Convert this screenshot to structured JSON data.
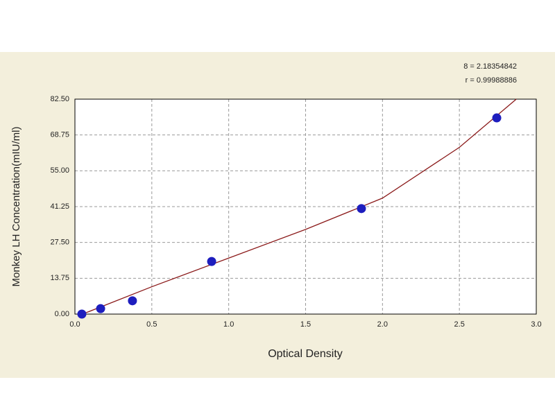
{
  "chart_data": {
    "type": "scatter",
    "x_label": "Optical Density",
    "y_label": "Monkey LH Concentration(mIU/ml)",
    "annotations": [
      "8 = 2.18354842",
      "r = 0.99988886"
    ],
    "xlim": [
      0,
      3.0
    ],
    "xticks": [
      {
        "value": 0,
        "label": "0.0"
      },
      0.5,
      {
        "value": 1,
        "label": "1.0"
      },
      1.5,
      {
        "value": 2,
        "label": "2.0"
      },
      2.5,
      {
        "value": 3,
        "label": "3.0"
      }
    ],
    "ylim": [
      0,
      82.5
    ],
    "yticks": [
      {
        "value": 0,
        "label": "0.00"
      },
      13.75,
      {
        "value": 27.5,
        "label": "27.50"
      },
      41.25,
      {
        "value": 55,
        "label": "55.00"
      },
      68.75,
      {
        "value": 82.5,
        "label": "82.50"
      }
    ],
    "grid": true,
    "series": [
      {
        "mode": "line",
        "color": "#8b1a1a",
        "x": [
          0.05,
          0.5,
          1.0,
          1.5,
          2.0,
          2.5,
          2.87
        ],
        "values": [
          0,
          10.5,
          21.5,
          32.5,
          44.5,
          64,
          82.5
        ]
      },
      {
        "mode": "markers",
        "color": "#1e1ebe",
        "x": [
          0.045,
          0.167,
          0.374,
          0.889,
          1.863,
          2.743
        ],
        "values": [
          0,
          2.1,
          5.1,
          20.2,
          40.5,
          75.3
        ]
      }
    ]
  }
}
